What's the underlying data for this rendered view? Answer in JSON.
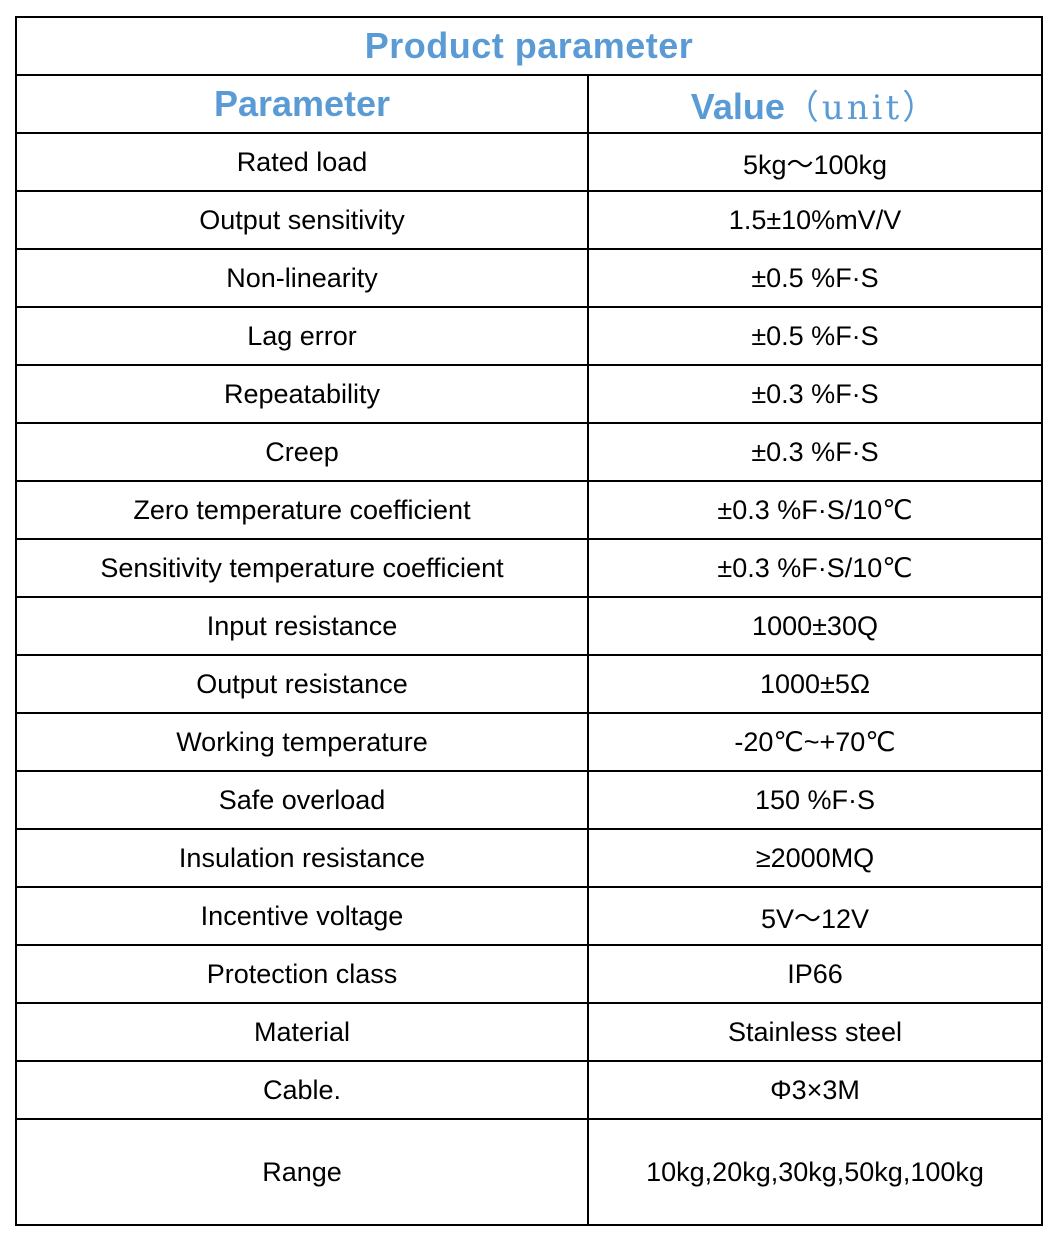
{
  "table": {
    "title": "Product parameter",
    "headers": {
      "parameter": "Parameter",
      "value": "Value",
      "value_unit": "（unit）"
    },
    "rows": [
      {
        "parameter": "Rated load",
        "value": "5kg～100kg"
      },
      {
        "parameter": "Output sensitivity",
        "value": "1.5±10%mV/V"
      },
      {
        "parameter": "Non-linearity",
        "value": "±0.5 %F·S"
      },
      {
        "parameter": "Lag error",
        "value": "±0.5 %F·S"
      },
      {
        "parameter": "Repeatability",
        "value": "±0.3 %F·S"
      },
      {
        "parameter": "Creep",
        "value": "±0.3 %F·S"
      },
      {
        "parameter": "Zero temperature coefficient",
        "value": "±0.3 %F·S/10℃"
      },
      {
        "parameter": "Sensitivity temperature coefficient",
        "value": "±0.3 %F·S/10℃"
      },
      {
        "parameter": "Input resistance",
        "value": "1000±30Q"
      },
      {
        "parameter": "Output resistance",
        "value": "1000±5Ω"
      },
      {
        "parameter": "Working temperature",
        "value": "-20℃~+70℃"
      },
      {
        "parameter": "Safe overload",
        "value": "150 %F·S"
      },
      {
        "parameter": "Insulation resistance",
        "value": "≥2000MQ"
      },
      {
        "parameter": "Incentive voltage",
        "value": "5V～12V"
      },
      {
        "parameter": "Protection class",
        "value": "IP66"
      },
      {
        "parameter": "Material",
        "value": "Stainless steel"
      },
      {
        "parameter": "Cable.",
        "value": "Φ3×3M"
      },
      {
        "parameter": "Range",
        "value": "10kg,20kg,30kg,50kg,100kg"
      }
    ]
  },
  "colors": {
    "heading": "#5b9bd5",
    "border": "#000000",
    "text": "#000000"
  }
}
